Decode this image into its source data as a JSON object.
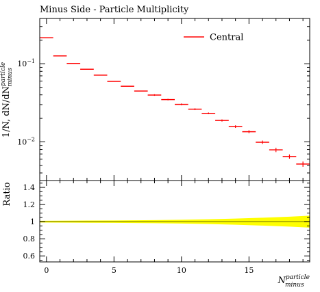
{
  "chart_data": {
    "title": "Minus Side - Particle Multiplicity",
    "type": "scatter",
    "main": {
      "ylabel": "1/N, dN/dN",
      "ylabel_sup": "particle",
      "ylabel_sub": "minus",
      "yscale": "log",
      "xlim": [
        -0.5,
        19.5
      ],
      "ylim": [
        0.0032,
        0.38
      ],
      "yticks": [
        {
          "value": 0.1,
          "label_base": "10",
          "label_exp": "−1"
        },
        {
          "value": 0.01,
          "label_base": "10",
          "label_exp": "−2"
        }
      ],
      "legend": {
        "position": "top-right",
        "label": "Central",
        "color": "#ff0000"
      },
      "series": [
        {
          "name": "Central",
          "color": "#ff0000",
          "x": [
            0,
            1,
            2,
            3,
            4,
            5,
            6,
            7,
            8,
            9,
            10,
            11,
            12,
            13,
            14,
            15,
            16,
            17,
            18,
            19
          ],
          "y": [
            0.215,
            0.126,
            0.101,
            0.085,
            0.0715,
            0.0595,
            0.0515,
            0.0448,
            0.0398,
            0.0348,
            0.0302,
            0.0262,
            0.0232,
            0.0188,
            0.0157,
            0.0135,
            0.0099,
            0.0079,
            0.0065,
            0.0052
          ],
          "yerr": [
            0,
            0,
            0,
            0,
            0,
            0,
            0,
            0,
            0.0009,
            0.0008,
            0.0008,
            0.0007,
            0.0006,
            0.0006,
            0.0006,
            0.0006,
            0.0005,
            0.0005,
            0.0004,
            0.0004
          ]
        }
      ]
    },
    "ratio": {
      "ylabel": "Ratio",
      "ylim": [
        0.53,
        1.48
      ],
      "yticks": [
        0.6,
        0.8,
        1,
        1.2,
        1.4
      ],
      "ytick_labels": [
        "0.6",
        "0.8",
        "1",
        "1.2",
        "1.4"
      ],
      "band_color": "#ffff00",
      "line_color": "#999900",
      "band_x": [
        -0.5,
        2,
        5,
        8,
        10,
        12,
        14,
        16,
        18,
        19.5
      ],
      "band_half_width": [
        0.01,
        0.012,
        0.014,
        0.018,
        0.022,
        0.028,
        0.036,
        0.046,
        0.058,
        0.07
      ]
    },
    "x": {
      "label": "N",
      "label_sup": "particle",
      "label_sub": "minus",
      "ticks": [
        0,
        5,
        10,
        15
      ],
      "tick_labels": [
        "0",
        "5",
        "10",
        "15"
      ]
    }
  }
}
